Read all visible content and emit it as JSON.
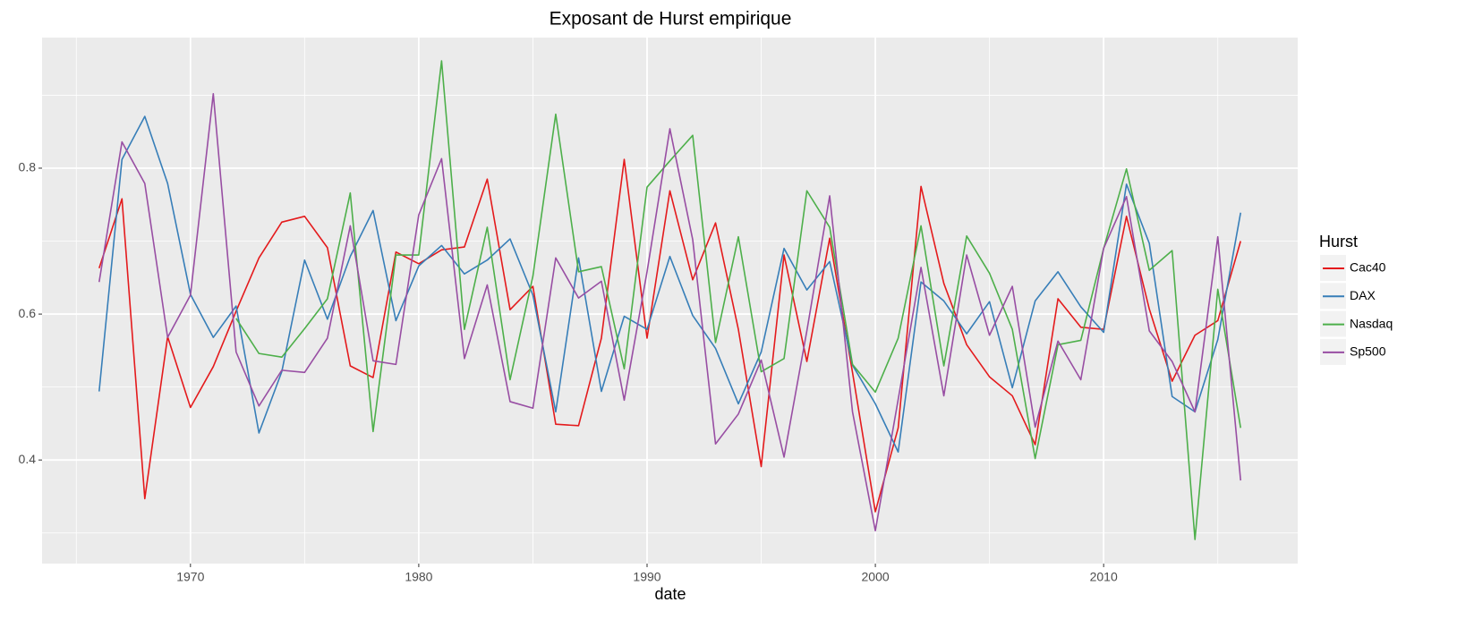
{
  "chart_data": {
    "type": "line",
    "title": "Exposant de Hurst empirique",
    "x_label": "date",
    "legend_title": "Hurst",
    "legend_position": "right",
    "grid": true,
    "x": [
      1966,
      1967,
      1968,
      1969,
      1970,
      1971,
      1972,
      1973,
      1974,
      1975,
      1976,
      1977,
      1978,
      1979,
      1980,
      1981,
      1982,
      1983,
      1984,
      1985,
      1986,
      1987,
      1988,
      1989,
      1990,
      1991,
      1992,
      1993,
      1994,
      1995,
      1996,
      1997,
      1998,
      1999,
      2000,
      2001,
      2002,
      2003,
      2004,
      2005,
      2006,
      2007,
      2008,
      2009,
      2010,
      2011,
      2012,
      2013,
      2014,
      2015,
      2016
    ],
    "xlim": [
      1963.5,
      2018.5
    ],
    "xticks": [
      1970,
      1980,
      1990,
      2000,
      2010
    ],
    "ylim": [
      0.258,
      0.979
    ],
    "yticks": [
      0.4,
      0.6,
      0.8
    ],
    "series": [
      {
        "name": "Cac40",
        "color": "#e41a1c",
        "values": [
          0.663,
          0.758,
          0.347,
          0.569,
          0.472,
          0.528,
          0.604,
          0.677,
          0.726,
          0.734,
          0.691,
          0.529,
          0.513,
          0.685,
          0.669,
          0.688,
          0.692,
          0.785,
          0.606,
          0.638,
          0.449,
          0.447,
          0.567,
          0.812,
          0.567,
          0.769,
          0.647,
          0.725,
          0.579,
          0.391,
          0.681,
          0.535,
          0.704,
          0.52,
          0.329,
          0.444,
          0.775,
          0.642,
          0.558,
          0.514,
          0.488,
          0.421,
          0.621,
          0.582,
          0.579,
          0.734,
          0.607,
          0.508,
          0.571,
          0.591,
          0.7
        ]
      },
      {
        "name": "DAX",
        "color": "#377eb8",
        "values": [
          0.494,
          0.812,
          0.871,
          0.779,
          0.627,
          0.568,
          0.611,
          0.437,
          0.521,
          0.674,
          0.593,
          0.679,
          0.742,
          0.591,
          0.666,
          0.694,
          0.655,
          0.674,
          0.703,
          0.626,
          0.466,
          0.677,
          0.494,
          0.597,
          0.579,
          0.679,
          0.598,
          0.553,
          0.477,
          0.548,
          0.69,
          0.633,
          0.672,
          0.53,
          0.477,
          0.411,
          0.644,
          0.618,
          0.573,
          0.617,
          0.499,
          0.618,
          0.658,
          0.61,
          0.575,
          0.778,
          0.697,
          0.487,
          0.466,
          0.565,
          0.739
        ]
      },
      {
        "name": "Nasdaq",
        "color": "#4daf4a",
        "values": [
          null,
          null,
          null,
          null,
          null,
          null,
          0.594,
          0.546,
          0.541,
          0.58,
          0.621,
          0.766,
          0.439,
          0.681,
          0.681,
          0.947,
          0.579,
          0.719,
          0.51,
          0.652,
          0.874,
          0.658,
          0.665,
          0.525,
          0.774,
          0.81,
          0.845,
          0.561,
          0.706,
          0.521,
          0.539,
          0.769,
          0.719,
          0.531,
          0.493,
          0.567,
          0.721,
          0.529,
          0.707,
          0.656,
          0.579,
          0.402,
          0.558,
          0.564,
          0.69,
          0.799,
          0.66,
          0.687,
          0.291,
          0.634,
          0.444
        ]
      },
      {
        "name": "Sp500",
        "color": "#984ea3",
        "values": [
          0.644,
          0.836,
          0.779,
          0.568,
          0.626,
          0.902,
          0.548,
          0.474,
          0.523,
          0.52,
          0.567,
          0.721,
          0.536,
          0.531,
          0.736,
          0.813,
          0.539,
          0.64,
          0.48,
          0.471,
          0.677,
          0.622,
          0.645,
          0.482,
          0.658,
          0.854,
          0.702,
          0.422,
          0.463,
          0.537,
          0.404,
          0.577,
          0.762,
          0.466,
          0.303,
          0.483,
          0.664,
          0.488,
          0.681,
          0.571,
          0.638,
          0.445,
          0.563,
          0.51,
          0.69,
          0.761,
          0.577,
          0.535,
          0.466,
          0.706,
          0.372
        ]
      }
    ]
  }
}
